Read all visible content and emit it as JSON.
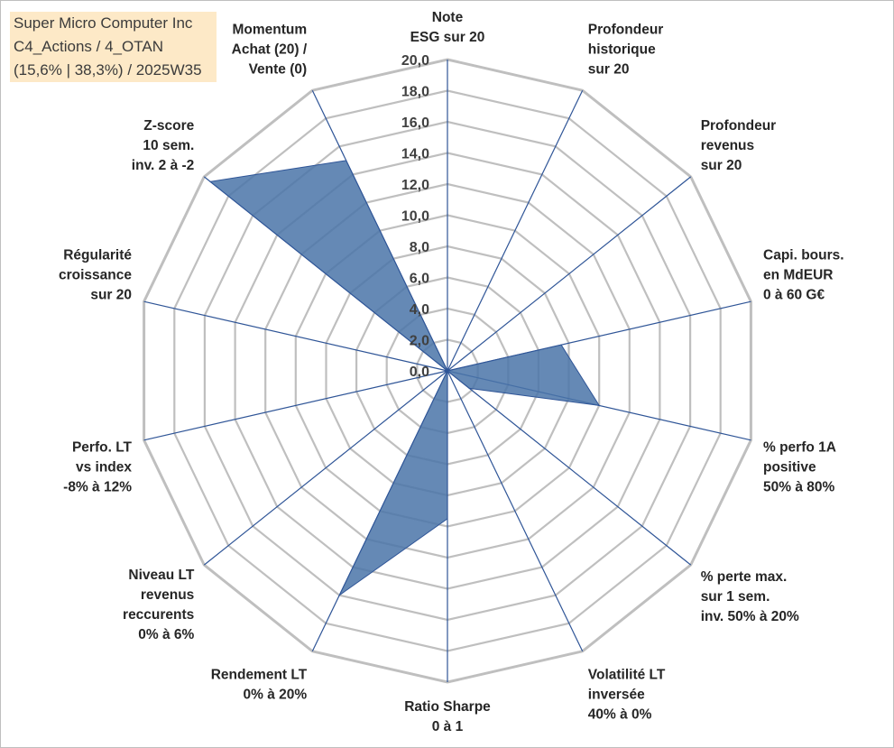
{
  "header": {
    "title_lines": [
      "Super Micro Computer Inc",
      "C4_Actions / 4_OTAN",
      "(15,6% | 38,3%) / 2025W35"
    ]
  },
  "colors": {
    "grid": "#bfbfbf",
    "spoke": "#2f5597",
    "series_fill": "#4a74a8",
    "series_stroke": "#2f5597",
    "title_background": "#fde9c7"
  },
  "chart_data": {
    "type": "radar",
    "rmax": 20,
    "ticks": [
      "0,0",
      "2,0",
      "4,0",
      "6,0",
      "8,0",
      "10,0",
      "12,0",
      "14,0",
      "16,0",
      "18,0",
      "20,0"
    ],
    "axes": [
      {
        "label": [
          "Note",
          "ESG sur 20"
        ],
        "value": 0
      },
      {
        "label": [
          "Profondeur",
          "historique",
          "sur 20"
        ],
        "value": 0
      },
      {
        "label": [
          "Profondeur",
          "revenus",
          "sur 20"
        ],
        "value": 0
      },
      {
        "label": [
          "Capi. bours.",
          "en MdEUR",
          "0 à 60 G€"
        ],
        "value": 7.5
      },
      {
        "label": [
          "% perfo 1A",
          "positive",
          "50% à 80%"
        ],
        "value": 10
      },
      {
        "label": [
          "% perte max.",
          "sur 1 sem.",
          "inv. 50% à 20%"
        ],
        "value": 1.8
      },
      {
        "label": [
          "Volatilité LT",
          "inversée",
          "40% à 0%"
        ],
        "value": 0
      },
      {
        "label": [
          "Ratio Sharpe",
          "0 à 1"
        ],
        "value": 9.5
      },
      {
        "label": [
          "Rendement LT",
          "0% à 20%"
        ],
        "value": 16
      },
      {
        "label": [
          "Niveau LT",
          "revenus",
          "reccurents",
          "0% à 6%"
        ],
        "value": 0
      },
      {
        "label": [
          "Perfo. LT",
          "vs index",
          "-8% à 12%"
        ],
        "value": 0
      },
      {
        "label": [
          "Régularité",
          "croissance",
          "sur 20"
        ],
        "value": 0
      },
      {
        "label": [
          "Z-score",
          "10 sem.",
          "inv. 2 à -2"
        ],
        "value": 19.5
      },
      {
        "label": [
          "Momentum",
          "Achat (20) /",
          "Vente (0)"
        ],
        "value": 15
      }
    ]
  }
}
